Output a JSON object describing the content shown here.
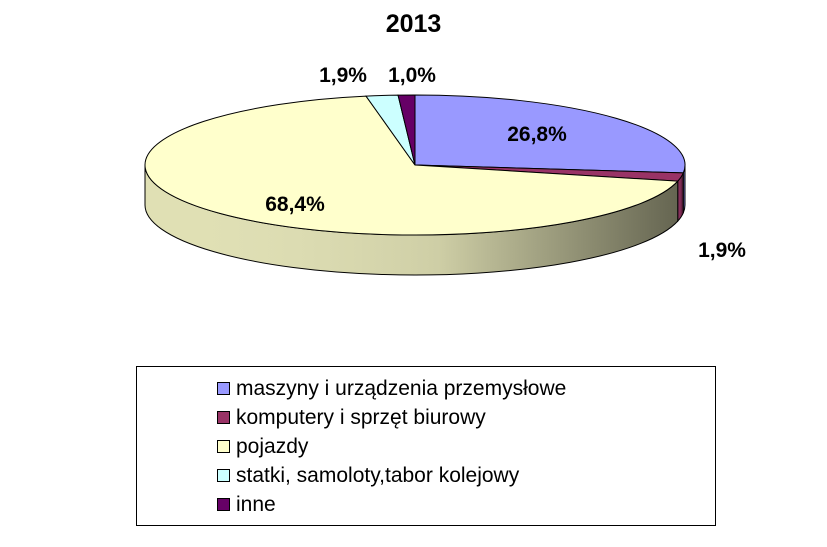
{
  "chart_data": {
    "type": "pie",
    "title": "2013",
    "style": "3d",
    "categories": [
      "maszyny i urządzenia przemysłowe",
      "komputery i sprzęt biurowy",
      "pojazdy",
      "statki, samoloty,tabor kolejowy",
      "inne"
    ],
    "values": [
      26.8,
      1.9,
      68.4,
      1.9,
      1.0
    ],
    "data_labels": [
      "26,8%",
      "1,9%",
      "68,4%",
      "1,9%",
      "1,0%"
    ],
    "colors": [
      "#9999ff",
      "#993366",
      "#ffffcc",
      "#ccffff",
      "#660066"
    ],
    "legend_position": "bottom"
  }
}
